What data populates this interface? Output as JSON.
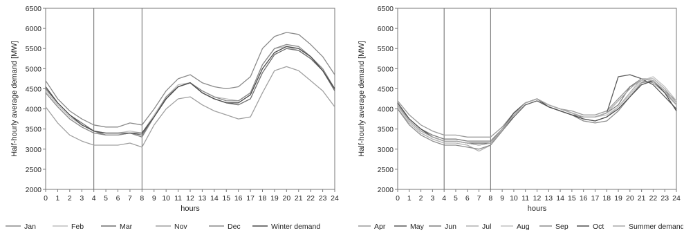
{
  "chart_data": [
    {
      "type": "line",
      "title": "",
      "xlabel": "hours",
      "ylabel": "Half-hourly average demand [MW]",
      "xlim": [
        0,
        24
      ],
      "ylim": [
        2000,
        6500
      ],
      "xticks": [
        "0",
        "1",
        "2",
        "3",
        "4",
        "5",
        "6",
        "7",
        "8",
        "9",
        "10",
        "11",
        "12",
        "13",
        "14",
        "15",
        "16",
        "17",
        "18",
        "19",
        "20",
        "21",
        "22",
        "23",
        "24"
      ],
      "yticks": [
        "2000",
        "2500",
        "3000",
        "3500",
        "4000",
        "4500",
        "5000",
        "5500",
        "6000",
        "6500"
      ],
      "vertical_markers": [
        4,
        8
      ],
      "grid": false,
      "legend_position": "bottom",
      "x": [
        0,
        1,
        2,
        3,
        4,
        5,
        6,
        7,
        8,
        9,
        10,
        11,
        12,
        13,
        14,
        15,
        16,
        17,
        18,
        19,
        20,
        21,
        22,
        23,
        24
      ],
      "series": [
        {
          "name": "Jan",
          "color": "#8a8a8a",
          "values": [
            4700,
            4250,
            3950,
            3750,
            3600,
            3550,
            3550,
            3650,
            3600,
            4000,
            4450,
            4750,
            4850,
            4650,
            4550,
            4500,
            4550,
            4800,
            5500,
            5800,
            5900,
            5850,
            5600,
            5300,
            4850
          ]
        },
        {
          "name": "Feb",
          "color": "#bdbdbd",
          "values": [
            4450,
            4100,
            3800,
            3600,
            3450,
            3400,
            3400,
            3450,
            3400,
            3850,
            4300,
            4600,
            4650,
            4450,
            4300,
            4250,
            4200,
            4400,
            5100,
            5500,
            5550,
            5450,
            5250,
            4950,
            4450
          ]
        },
        {
          "name": "Mar",
          "color": "#6f6f6f",
          "values": [
            4500,
            4150,
            3850,
            3650,
            3450,
            3350,
            3350,
            3400,
            3350,
            3800,
            4250,
            4550,
            4650,
            4400,
            4250,
            4150,
            4100,
            4250,
            4900,
            5350,
            5500,
            5450,
            5250,
            4950,
            4450
          ]
        },
        {
          "name": "Nov",
          "color": "#a0a0a0",
          "values": [
            4050,
            3650,
            3350,
            3200,
            3100,
            3100,
            3100,
            3150,
            3050,
            3600,
            4000,
            4250,
            4300,
            4100,
            3950,
            3850,
            3750,
            3800,
            4400,
            4950,
            5050,
            4950,
            4700,
            4450,
            4050
          ]
        },
        {
          "name": "Dec",
          "color": "#888888",
          "values": [
            4400,
            4050,
            3750,
            3550,
            3400,
            3350,
            3350,
            3400,
            3300,
            3800,
            4300,
            4550,
            4650,
            4450,
            4300,
            4200,
            4200,
            4400,
            5100,
            5500,
            5600,
            5550,
            5300,
            5000,
            4500
          ]
        },
        {
          "name": "Winter demand",
          "color": "#4a4a4a",
          "values": [
            4550,
            4150,
            3850,
            3600,
            3450,
            3400,
            3400,
            3400,
            3400,
            3800,
            4250,
            4550,
            4650,
            4400,
            4250,
            4150,
            4150,
            4350,
            5000,
            5400,
            5550,
            5500,
            5300,
            4950,
            4500
          ]
        }
      ]
    },
    {
      "type": "line",
      "title": "",
      "xlabel": "hours",
      "ylabel": "Half-hourly average demand [MW]",
      "xlim": [
        0,
        24
      ],
      "ylim": [
        2000,
        6500
      ],
      "xticks": [
        "0",
        "1",
        "2",
        "3",
        "4",
        "5",
        "6",
        "7",
        "8",
        "9",
        "10",
        "11",
        "12",
        "13",
        "14",
        "15",
        "16",
        "17",
        "18",
        "19",
        "20",
        "21",
        "22",
        "23",
        "24"
      ],
      "yticks": [
        "2000",
        "2500",
        "3000",
        "3500",
        "4000",
        "4500",
        "5000",
        "5500",
        "6000",
        "6500"
      ],
      "vertical_markers": [
        4,
        8
      ],
      "grid": false,
      "legend_position": "bottom",
      "x": [
        0,
        1,
        2,
        3,
        4,
        5,
        6,
        7,
        8,
        9,
        10,
        11,
        12,
        13,
        14,
        15,
        16,
        17,
        18,
        19,
        20,
        21,
        22,
        23,
        24
      ],
      "series": [
        {
          "name": "Apr",
          "color": "#9a9a9a",
          "values": [
            4200,
            3850,
            3600,
            3450,
            3350,
            3350,
            3300,
            3300,
            3300,
            3550,
            3900,
            4150,
            4250,
            4100,
            4000,
            3950,
            3850,
            3850,
            3950,
            4250,
            4550,
            4700,
            4650,
            4400,
            4100
          ]
        },
        {
          "name": "May",
          "color": "#5a5a5a",
          "values": [
            4050,
            3700,
            3450,
            3300,
            3200,
            3200,
            3150,
            3100,
            3150,
            3450,
            3800,
            4100,
            4200,
            4050,
            3950,
            3850,
            3800,
            3800,
            3900,
            4800,
            4850,
            4750,
            4600,
            4300,
            4000
          ]
        },
        {
          "name": "Jun",
          "color": "#7d7d7d",
          "values": [
            4100,
            3750,
            3500,
            3350,
            3250,
            3250,
            3200,
            3200,
            3200,
            3500,
            3850,
            4150,
            4250,
            4100,
            4000,
            3900,
            3800,
            3800,
            3900,
            4100,
            4550,
            4750,
            4700,
            4450,
            4200
          ]
        },
        {
          "name": "Jul",
          "color": "#b0b0b0",
          "values": [
            4000,
            3650,
            3400,
            3250,
            3150,
            3150,
            3100,
            2950,
            3100,
            3450,
            3850,
            4150,
            4250,
            4100,
            4000,
            3900,
            3750,
            3700,
            3800,
            4050,
            4400,
            4750,
            4750,
            4500,
            4150
          ]
        },
        {
          "name": "Aug",
          "color": "#c2c2c2",
          "values": [
            4050,
            3700,
            3450,
            3300,
            3200,
            3200,
            3150,
            3100,
            3150,
            3450,
            3850,
            4150,
            4250,
            4100,
            4000,
            3900,
            3800,
            3800,
            3850,
            4050,
            4350,
            4700,
            4800,
            4550,
            4200
          ]
        },
        {
          "name": "Sep",
          "color": "#8c8c8c",
          "values": [
            4000,
            3600,
            3350,
            3200,
            3100,
            3100,
            3050,
            3000,
            3100,
            3450,
            3850,
            4150,
            4250,
            4050,
            3950,
            3850,
            3700,
            3650,
            3700,
            3950,
            4300,
            4650,
            4700,
            4450,
            4100
          ]
        },
        {
          "name": "Oct",
          "color": "#4f4f4f",
          "values": [
            4150,
            3750,
            3500,
            3300,
            3200,
            3200,
            3150,
            3150,
            3150,
            3500,
            3900,
            4150,
            4250,
            4050,
            3950,
            3850,
            3750,
            3700,
            3800,
            4000,
            4300,
            4600,
            4700,
            4400,
            3950
          ]
        },
        {
          "name": "Summer demand",
          "color": "#a8a8a8",
          "values": [
            4100,
            3700,
            3450,
            3300,
            3200,
            3200,
            3150,
            3100,
            3150,
            3500,
            3850,
            4150,
            4250,
            4100,
            4000,
            3900,
            3800,
            3800,
            3900,
            4200,
            4500,
            4750,
            4700,
            4450,
            4100
          ]
        }
      ]
    }
  ]
}
